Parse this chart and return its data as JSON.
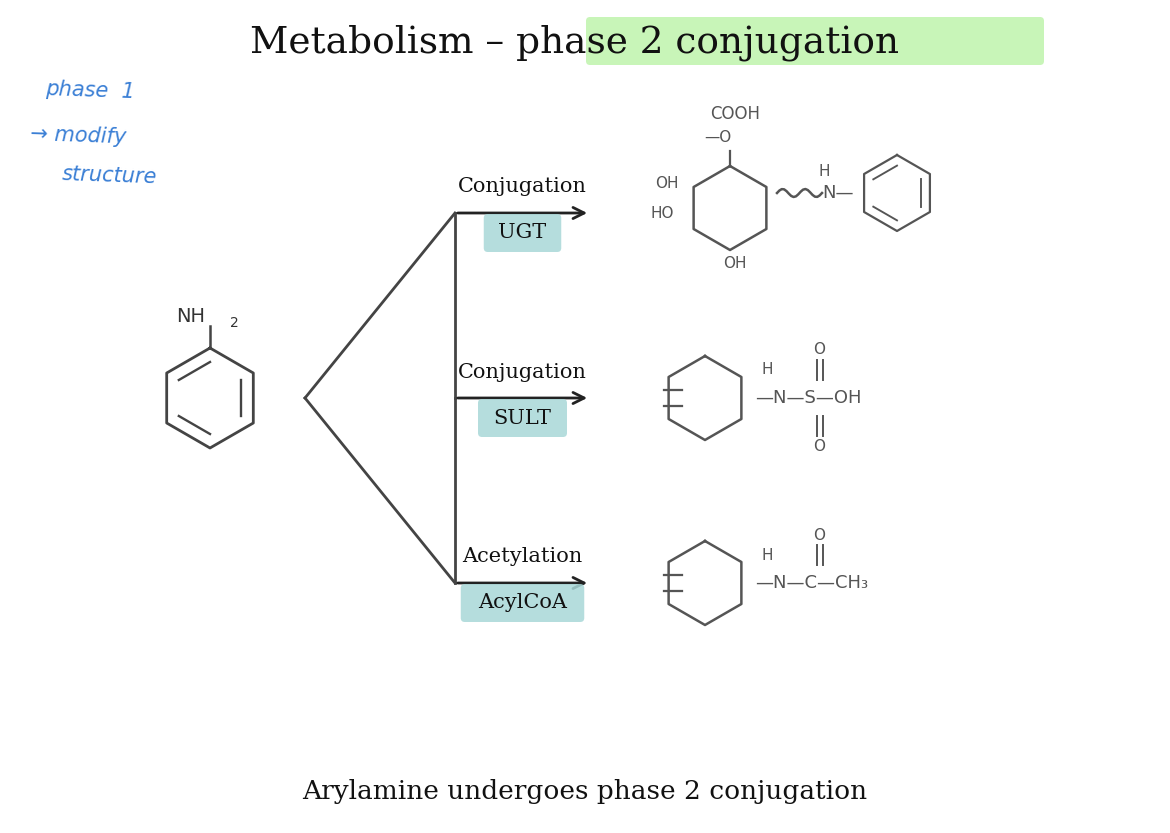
{
  "title_prefix": "Metabolism – ",
  "title_highlight": "phase 2 conjugation",
  "title_highlight_color": "#c8f5b8",
  "background_color": "#ffffff",
  "subtitle": "Arylamine undergoes phase 2 conjugation",
  "handwritten_color": "#3a7fd5",
  "highlight_color": "#a8d8d8",
  "arrow_color": "#222222",
  "line_color": "#444444",
  "chem_color": "#555555",
  "pathway_data": [
    {
      "label": "Conjugation",
      "sub": "UGT",
      "y": 6.2
    },
    {
      "label": "Conjugation",
      "sub": "SULT",
      "y": 4.35
    },
    {
      "label": "Acetylation",
      "sub": "AcylCoA",
      "y": 2.5
    }
  ]
}
